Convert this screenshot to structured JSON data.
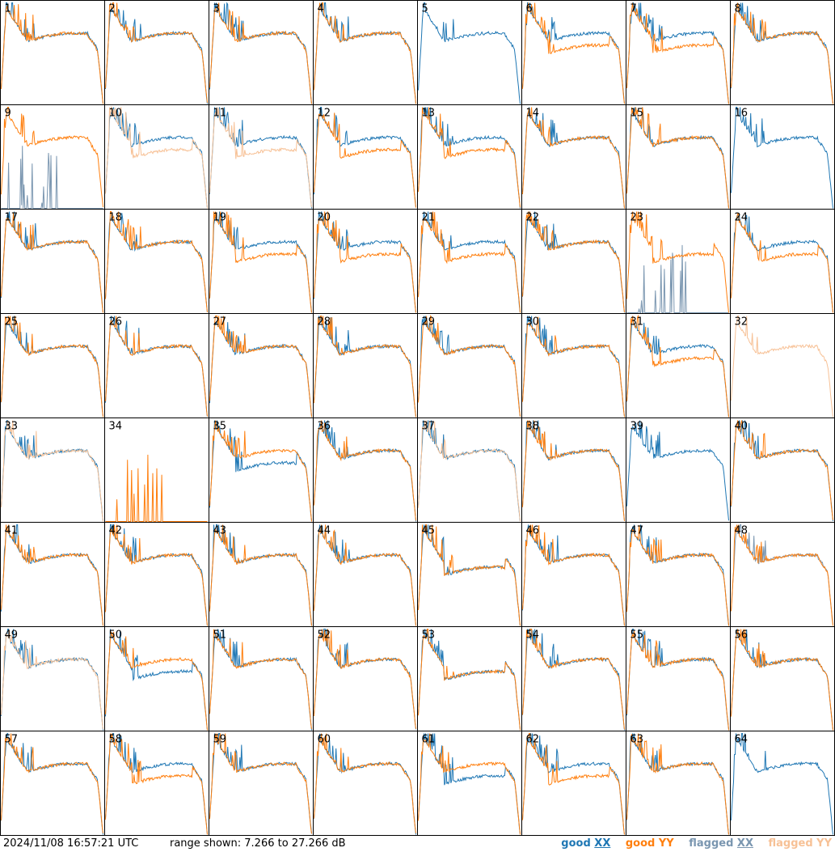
{
  "chart_data": {
    "type": "line",
    "panel_labels": [
      "1",
      "2",
      "3",
      "4",
      "5",
      "6",
      "7",
      "8",
      "9",
      "10",
      "11",
      "12",
      "13",
      "14",
      "15",
      "16",
      "17",
      "18",
      "19",
      "20",
      "21",
      "22",
      "23",
      "24",
      "25",
      "26",
      "27",
      "28",
      "29",
      "30",
      "31",
      "32",
      "33",
      "34",
      "35",
      "36",
      "37",
      "38",
      "39",
      "40",
      "41",
      "42",
      "43",
      "44",
      "45",
      "46",
      "47",
      "48",
      "49",
      "50",
      "51",
      "52",
      "53",
      "54",
      "55",
      "56",
      "57",
      "58",
      "59",
      "60",
      "61",
      "62",
      "63",
      "64"
    ],
    "ylim": [
      7.266,
      27.266
    ],
    "unit": "dB",
    "legend_position": "bottom-right",
    "series": [
      {
        "name": "good XX",
        "color": "#1f77b4"
      },
      {
        "name": "good YY",
        "color": "#ff7f0e"
      },
      {
        "name": "flagged XX",
        "color": "#7a96b0"
      },
      {
        "name": "flagged YY",
        "color": "#f7c196"
      }
    ],
    "panels": {
      "flagged_xx": [
        9,
        23,
        48
      ],
      "flagged_yy": [
        10,
        11,
        32,
        33,
        37,
        49
      ],
      "yy_missing": [
        5,
        16,
        39,
        64
      ],
      "xx_missing": [
        32,
        34
      ],
      "yy_low_level": [
        23,
        31,
        24,
        19,
        20,
        6,
        10,
        11,
        13,
        21,
        45,
        53,
        58,
        62,
        7,
        12
      ],
      "xx_low_level": [
        35,
        45,
        50,
        53,
        61
      ]
    }
  },
  "footer": {
    "timestamp": "2024/11/08 16:57:21 UTC",
    "range_text": "range shown: 7.266 to 27.266 dB"
  },
  "legend": {
    "good_label": "good",
    "good_xx": "XX",
    "good_yy_label": "good YY",
    "flagged_label": "flagged",
    "flagged_xx": "XX",
    "flagged_yy_label": "flagged YY"
  }
}
